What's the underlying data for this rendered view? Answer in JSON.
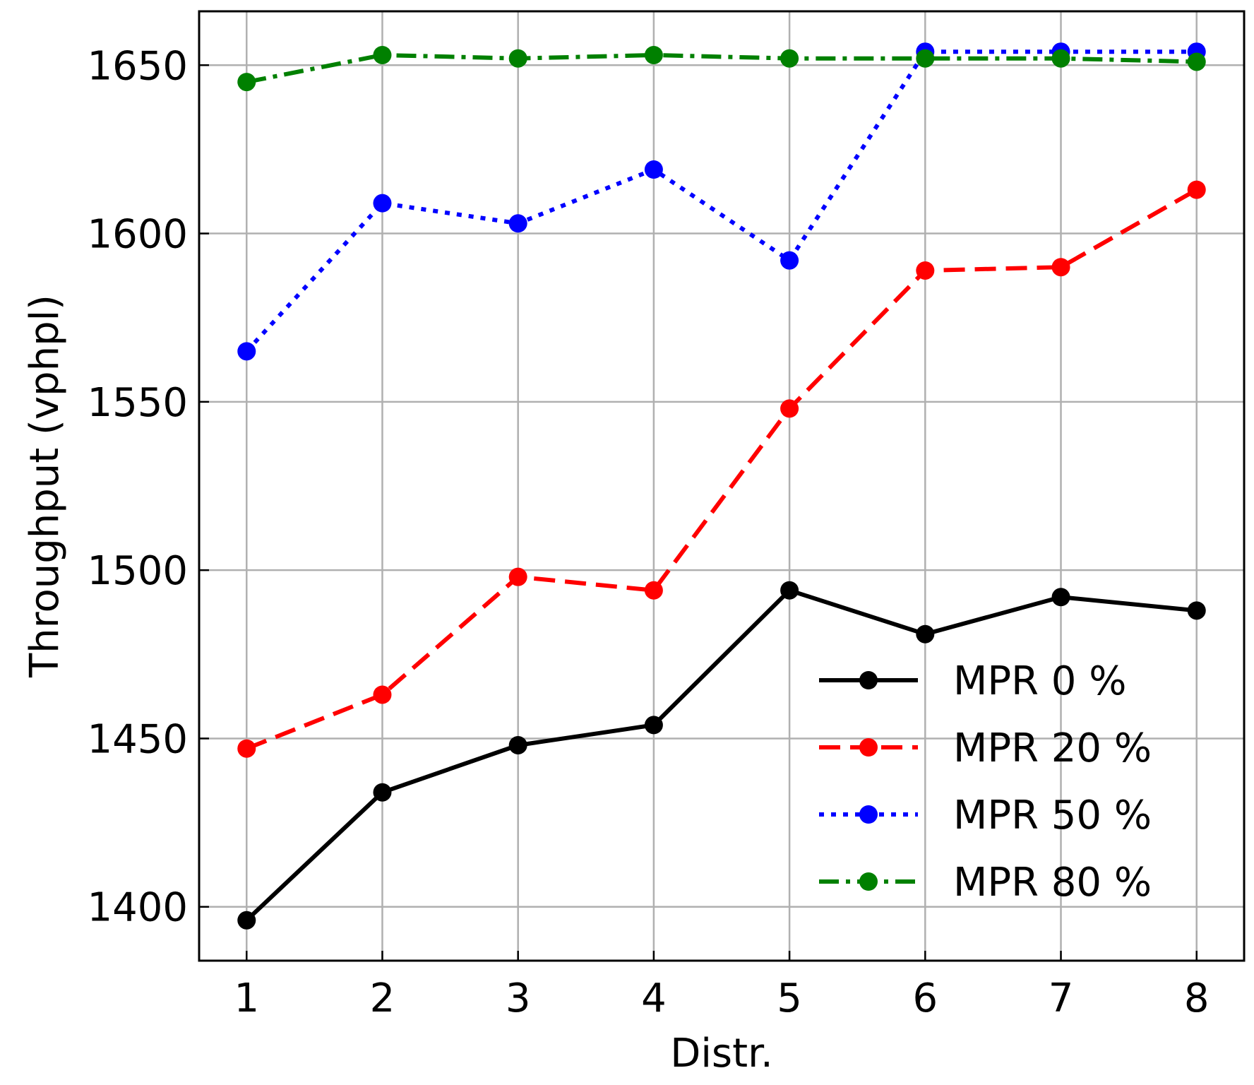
{
  "chart_data": {
    "type": "line",
    "xlabel": "Distr.",
    "ylabel": "Throughput (vphpl)",
    "x": [
      1,
      2,
      3,
      4,
      5,
      6,
      7,
      8
    ],
    "xlim": [
      0.65,
      8.35
    ],
    "ylim": [
      1384,
      1666
    ],
    "xticks": [
      1,
      2,
      3,
      4,
      5,
      6,
      7,
      8
    ],
    "yticks": [
      1400,
      1450,
      1500,
      1550,
      1600,
      1650
    ],
    "grid": true,
    "legend_position": "lower-right",
    "series": [
      {
        "name": "MPR 0 %",
        "color": "#000000",
        "style": "solid",
        "values": [
          1396,
          1434,
          1448,
          1454,
          1494,
          1481,
          1492,
          1488
        ]
      },
      {
        "name": "MPR 20 %",
        "color": "#ff0000",
        "style": "dashed",
        "values": [
          1447,
          1463,
          1498,
          1494,
          1548,
          1589,
          1590,
          1613
        ]
      },
      {
        "name": "MPR 50 %",
        "color": "#0000ff",
        "style": "dotted",
        "values": [
          1565,
          1609,
          1603,
          1619,
          1592,
          1654,
          1654,
          1654
        ]
      },
      {
        "name": "MPR 80 %",
        "color": "#008000",
        "style": "dashdot",
        "values": [
          1645,
          1653,
          1652,
          1653,
          1652,
          1652,
          1652,
          1651
        ]
      }
    ]
  }
}
